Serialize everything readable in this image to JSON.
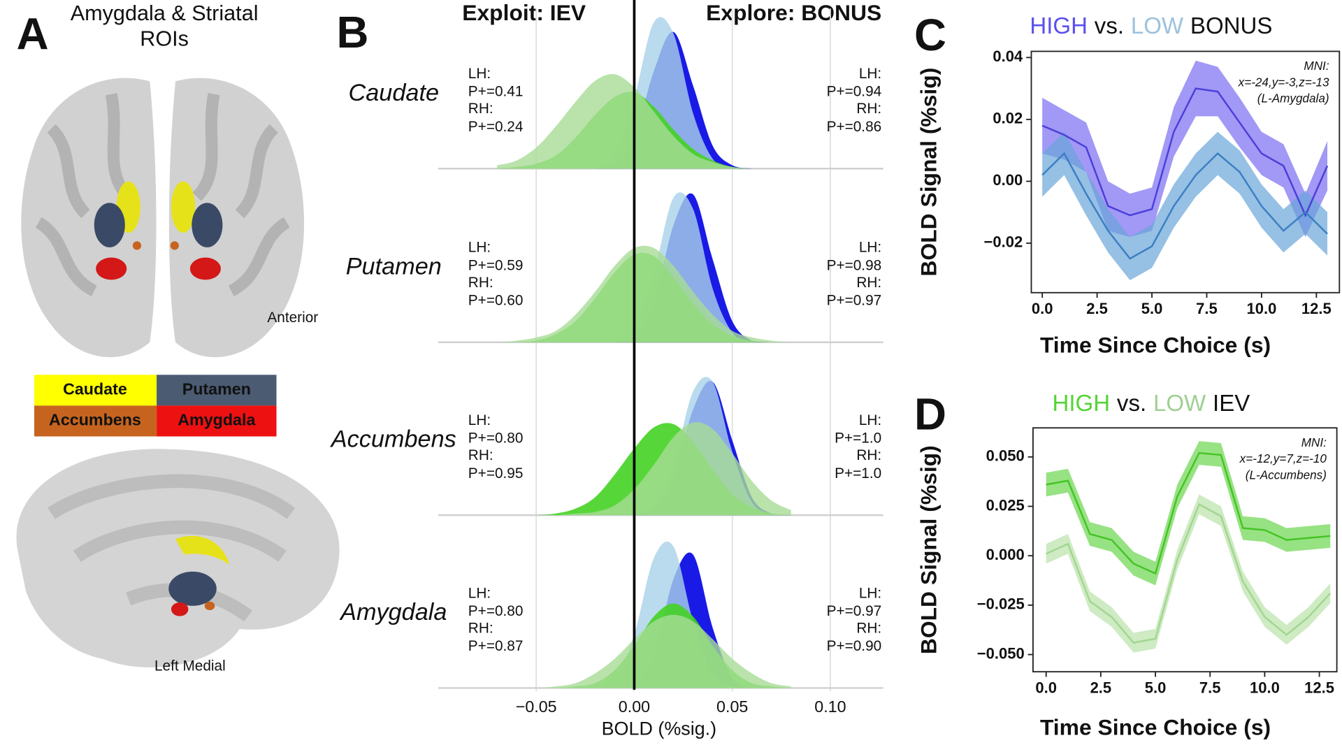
{
  "panel_a": {
    "label": "A",
    "title_lines": [
      "Amygdala & Striatal",
      "ROIs"
    ],
    "legend": [
      {
        "text": "Caudate",
        "color": "#ffff00"
      },
      {
        "text": "Putamen",
        "color": "#4b5b72"
      },
      {
        "text": "Accumbens",
        "color": "#c6641f"
      },
      {
        "text": "Amygdala",
        "color": "#ee1111"
      }
    ],
    "view_labels": [
      "Anterior",
      "Left Medial"
    ]
  },
  "chart_data": [
    {
      "type": "ridgeline",
      "panel_label": "B",
      "headers": [
        {
          "text": "Exploit: IEV",
          "color": "#55d433"
        },
        {
          "text": "Explore: BONUS",
          "color": "#1818d8"
        }
      ],
      "xlabel": "BOLD (%sig.)",
      "xlim": [
        -0.1,
        0.127
      ],
      "xticks": [
        {
          "value": -0.05,
          "label": "−0.05"
        },
        {
          "value": 0,
          "label": "0.00"
        },
        0.05,
        {
          "value": 0.1,
          "label": "0.10"
        }
      ],
      "grid": true,
      "x": [
        -0.07,
        -0.06,
        -0.05,
        -0.04,
        -0.03,
        -0.02,
        -0.01,
        0,
        0.01,
        0.02,
        0.03,
        0.04,
        0.05,
        0.06,
        0.07,
        0.08
      ],
      "rows": [
        {
          "name": "Caudate",
          "series": [
            {
              "label": "LH:",
              "stat": "P+=0.94",
              "color": "#1a1ae6",
              "opacity": 1,
              "text_color": "#1010e0",
              "side": "right",
              "values": [
                0,
                0,
                0,
                0,
                0,
                0,
                3,
                19,
                60,
                84,
                51,
                14,
                2,
                0,
                0,
                0
              ]
            },
            {
              "label": "RH:",
              "stat": "P+=0.86",
              "color": "#a9d2e8",
              "opacity": 0.8,
              "text_color": "#2f78c0",
              "side": "right",
              "values": [
                0,
                0,
                0,
                0,
                0,
                1,
                9,
                43,
                90,
                83,
                34,
                6,
                0,
                0,
                0,
                0
              ]
            },
            {
              "label": "LH:",
              "stat": "P+=0.41",
              "color": "#45d124",
              "opacity": 0.9,
              "text_color": "#5dd83a",
              "side": "left",
              "values": [
                0,
                1,
                3,
                8,
                19,
                33,
                44,
                47,
                38,
                24,
                12,
                5,
                1,
                0,
                0,
                0
              ]
            },
            {
              "label": "RH:",
              "stat": "P+=0.24",
              "color": "#a8dc96",
              "opacity": 0.8,
              "text_color": "#8fcf7f",
              "side": "left",
              "values": [
                2,
                5,
                13,
                26,
                41,
                54,
                58,
                50,
                35,
                20,
                9,
                4,
                1,
                0,
                0,
                0
              ]
            }
          ]
        },
        {
          "name": "Putamen",
          "series": [
            {
              "label": "LH:",
              "stat": "P+=0.98",
              "color": "#1a1ae6",
              "opacity": 1,
              "text_color": "#1010e0",
              "side": "right",
              "values": [
                0,
                0,
                0,
                0,
                0,
                0,
                0,
                4,
                24,
                72,
                91,
                51,
                13,
                1,
                0,
                0
              ]
            },
            {
              "label": "RH:",
              "stat": "P+=0.97",
              "color": "#a9d2e8",
              "opacity": 0.8,
              "text_color": "#2f78c0",
              "side": "right",
              "values": [
                0,
                0,
                0,
                0,
                0,
                0,
                1,
                9,
                42,
                89,
                82,
                33,
                6,
                0,
                0,
                0
              ]
            },
            {
              "label": "LH:",
              "stat": "P+=0.59",
              "color": "#45d124",
              "opacity": 0.9,
              "text_color": "#5dd83a",
              "side": "left",
              "values": [
                0,
                0,
                1,
                5,
                13,
                27,
                43,
                54,
                53,
                40,
                24,
                11,
                4,
                1,
                0,
                0
              ]
            },
            {
              "label": "RH:",
              "stat": "P+=0.60",
              "color": "#a8dc96",
              "opacity": 0.8,
              "text_color": "#8fcf7f",
              "side": "left",
              "values": [
                0,
                1,
                3,
                7,
                17,
                31,
                47,
                58,
                58,
                47,
                31,
                17,
                7,
                3,
                1,
                0
              ]
            }
          ]
        },
        {
          "name": "Accumbens",
          "series": [
            {
              "label": "LH:",
              "stat": "P+=1.0",
              "color": "#1a1ae6",
              "opacity": 1,
              "text_color": "#1010e0",
              "side": "right",
              "values": [
                0,
                0,
                0,
                0,
                0,
                0,
                0,
                0,
                3,
                22,
                65,
                82,
                46,
                11,
                1,
                0
              ]
            },
            {
              "label": "RH:",
              "stat": "P+=1.0",
              "color": "#a9d2e8",
              "opacity": 0.8,
              "text_color": "#2f78c0",
              "side": "right",
              "values": [
                0,
                0,
                0,
                0,
                0,
                0,
                0,
                0,
                5,
                31,
                76,
                82,
                39,
                8,
                1,
                0
              ]
            },
            {
              "label": "LH:",
              "stat": "P+=0.80",
              "color": "#45d124",
              "opacity": 0.9,
              "text_color": "#5dd83a",
              "side": "left",
              "values": [
                0,
                0,
                0,
                1,
                4,
                11,
                25,
                41,
                54,
                56,
                45,
                28,
                13,
                5,
                1,
                0
              ]
            },
            {
              "label": "RH:",
              "stat": "P+=0.95",
              "color": "#a8dc96",
              "opacity": 0.8,
              "text_color": "#8fcf7f",
              "side": "left",
              "values": [
                0,
                0,
                0,
                0,
                1,
                2,
                6,
                16,
                31,
                48,
                57,
                53,
                38,
                21,
                9,
                3
              ]
            }
          ]
        },
        {
          "name": "Amygdala",
          "series": [
            {
              "label": "LH:",
              "stat": "P+=0.97",
              "color": "#1a1ae6",
              "opacity": 1,
              "text_color": "#1010e0",
              "side": "right",
              "values": [
                0,
                0,
                0,
                0,
                0,
                0,
                0,
                2,
                20,
                67,
                82,
                37,
                6,
                0,
                0,
                0
              ]
            },
            {
              "label": "RH:",
              "stat": "P+=0.90",
              "color": "#a9d2e8",
              "opacity": 0.8,
              "text_color": "#2f78c0",
              "side": "right",
              "values": [
                0,
                0,
                0,
                0,
                0,
                0,
                6,
                33,
                80,
                87,
                41,
                9,
                1,
                0,
                0,
                0
              ]
            },
            {
              "label": "LH:",
              "stat": "P+=0.80",
              "color": "#45d124",
              "opacity": 0.9,
              "text_color": "#5dd83a",
              "side": "left",
              "values": [
                0,
                0,
                0,
                0,
                1,
                3,
                11,
                26,
                44,
                52,
                44,
                26,
                11,
                3,
                1,
                0
              ]
            },
            {
              "label": "RH:",
              "stat": "P+=0.87",
              "color": "#a8dc96",
              "opacity": 0.8,
              "text_color": "#8fcf7f",
              "side": "left",
              "values": [
                0,
                0,
                0,
                1,
                3,
                9,
                18,
                30,
                41,
                45,
                41,
                30,
                18,
                9,
                3,
                1
              ]
            }
          ]
        }
      ]
    },
    {
      "type": "line",
      "panel_label": "C",
      "title_parts": [
        {
          "text": "HIGH",
          "color": "#5a4ff0"
        },
        {
          "text": "vs.",
          "color": "#111111"
        },
        {
          "text": "LOW",
          "color": "#9cc1dc"
        },
        {
          "text": "BONUS",
          "color": "#111111"
        }
      ],
      "annotation": [
        "MNI:",
        "x=-24,y=-3,z=-13",
        "(L-Amygdala)"
      ],
      "xlabel": "Time Since Choice (s)",
      "ylabel": "BOLD Signal (%sig)",
      "xlim": [
        -0.5,
        13.55
      ],
      "ylim": [
        -0.036,
        0.042
      ],
      "xticks": [
        {
          "value": 0,
          "label": "0.0"
        },
        2.5,
        {
          "value": 5,
          "label": "5.0"
        },
        7.5,
        {
          "value": 10,
          "label": "10.0"
        },
        12.5
      ],
      "yticks": [
        0.04,
        0.02,
        {
          "value": 0,
          "label": "0.00"
        },
        {
          "value": -0.02,
          "label": "−0.02"
        }
      ],
      "x": [
        0,
        1,
        2,
        3,
        4,
        5,
        6,
        7,
        8,
        9,
        10,
        11,
        12,
        13
      ],
      "series": [
        {
          "color": "#4a3fd8",
          "band_color": "#7a6cf2",
          "values": [
            0.018,
            0.015,
            0.011,
            -0.008,
            -0.011,
            -0.009,
            0.016,
            0.03,
            0.029,
            0.019,
            0.009,
            0.005,
            -0.011,
            0.005
          ],
          "upper": [
            0.027,
            0.023,
            0.019,
            0.0,
            -0.004,
            -0.002,
            0.024,
            0.039,
            0.037,
            0.027,
            0.016,
            0.012,
            -0.004,
            0.013
          ],
          "lower": [
            0.009,
            0.007,
            0.003,
            -0.016,
            -0.018,
            -0.016,
            0.008,
            0.021,
            0.021,
            0.011,
            0.002,
            -0.002,
            -0.018,
            -0.003
          ]
        },
        {
          "color": "#3b7fc2",
          "band_color": "#6aa5d8",
          "values": [
            0.002,
            0.009,
            -0.004,
            -0.016,
            -0.025,
            -0.021,
            -0.008,
            0.002,
            0.009,
            0.003,
            -0.008,
            -0.016,
            -0.01,
            -0.017
          ],
          "upper": [
            0.009,
            0.016,
            0.003,
            -0.009,
            -0.018,
            -0.014,
            -0.001,
            0.009,
            0.016,
            0.01,
            -0.001,
            -0.009,
            -0.003,
            -0.01
          ],
          "lower": [
            -0.005,
            0.002,
            -0.011,
            -0.023,
            -0.032,
            -0.028,
            -0.015,
            -0.005,
            0.002,
            -0.004,
            -0.015,
            -0.023,
            -0.017,
            -0.024
          ]
        }
      ]
    },
    {
      "type": "line",
      "panel_label": "D",
      "title_parts": [
        {
          "text": "HIGH",
          "color": "#55d433"
        },
        {
          "text": "vs.",
          "color": "#111111"
        },
        {
          "text": "LOW",
          "color": "#9fcf92"
        },
        {
          "text": "IEV",
          "color": "#111111"
        }
      ],
      "annotation": [
        "MNI:",
        "x=-12,y=7,z=-10",
        "(L-Accumbens)"
      ],
      "xlabel": "Time Since Choice (s)",
      "ylabel": "BOLD Signal (%sig)",
      "xlim": [
        -0.6,
        13.3
      ],
      "ylim": [
        -0.0587,
        0.0647
      ],
      "xticks": [
        {
          "value": 0,
          "label": "0.0"
        },
        2.5,
        {
          "value": 5,
          "label": "5.0"
        },
        7.5,
        {
          "value": 10,
          "label": "10.0"
        },
        12.5
      ],
      "yticks": [
        {
          "value": 0.05,
          "label": "0.050"
        },
        0.025,
        {
          "value": 0,
          "label": "0.000"
        },
        {
          "value": -0.025,
          "label": "−0.025"
        },
        {
          "value": -0.05,
          "label": "−0.050"
        }
      ],
      "x": [
        0,
        1,
        2,
        3,
        4,
        5,
        6,
        7,
        8,
        9,
        10,
        11,
        12,
        13
      ],
      "series": [
        {
          "color": "#44c424",
          "band_color": "#6bd64f",
          "values": [
            0.036,
            0.038,
            0.011,
            0.008,
            -0.004,
            -0.009,
            0.03,
            0.052,
            0.051,
            0.014,
            0.013,
            0.008,
            0.009,
            0.01
          ],
          "upper": [
            0.042,
            0.044,
            0.017,
            0.014,
            0.002,
            -0.003,
            0.036,
            0.058,
            0.057,
            0.02,
            0.019,
            0.014,
            0.015,
            0.016
          ],
          "lower": [
            0.03,
            0.032,
            0.005,
            0.002,
            -0.01,
            -0.015,
            0.024,
            0.046,
            0.045,
            0.008,
            0.007,
            0.002,
            0.003,
            0.004
          ]
        },
        {
          "color": "#a2d68f",
          "band_color": "#b9e3aa",
          "values": [
            0.001,
            0.006,
            -0.023,
            -0.031,
            -0.044,
            -0.042,
            -0.002,
            0.026,
            0.02,
            -0.013,
            -0.031,
            -0.04,
            -0.031,
            -0.019
          ],
          "upper": [
            0.006,
            0.011,
            -0.018,
            -0.026,
            -0.039,
            -0.037,
            0.003,
            0.031,
            0.025,
            -0.008,
            -0.026,
            -0.035,
            -0.026,
            -0.014
          ],
          "lower": [
            -0.004,
            0.001,
            -0.028,
            -0.036,
            -0.049,
            -0.047,
            -0.007,
            0.021,
            0.015,
            -0.018,
            -0.036,
            -0.045,
            -0.036,
            -0.024
          ]
        }
      ]
    }
  ]
}
